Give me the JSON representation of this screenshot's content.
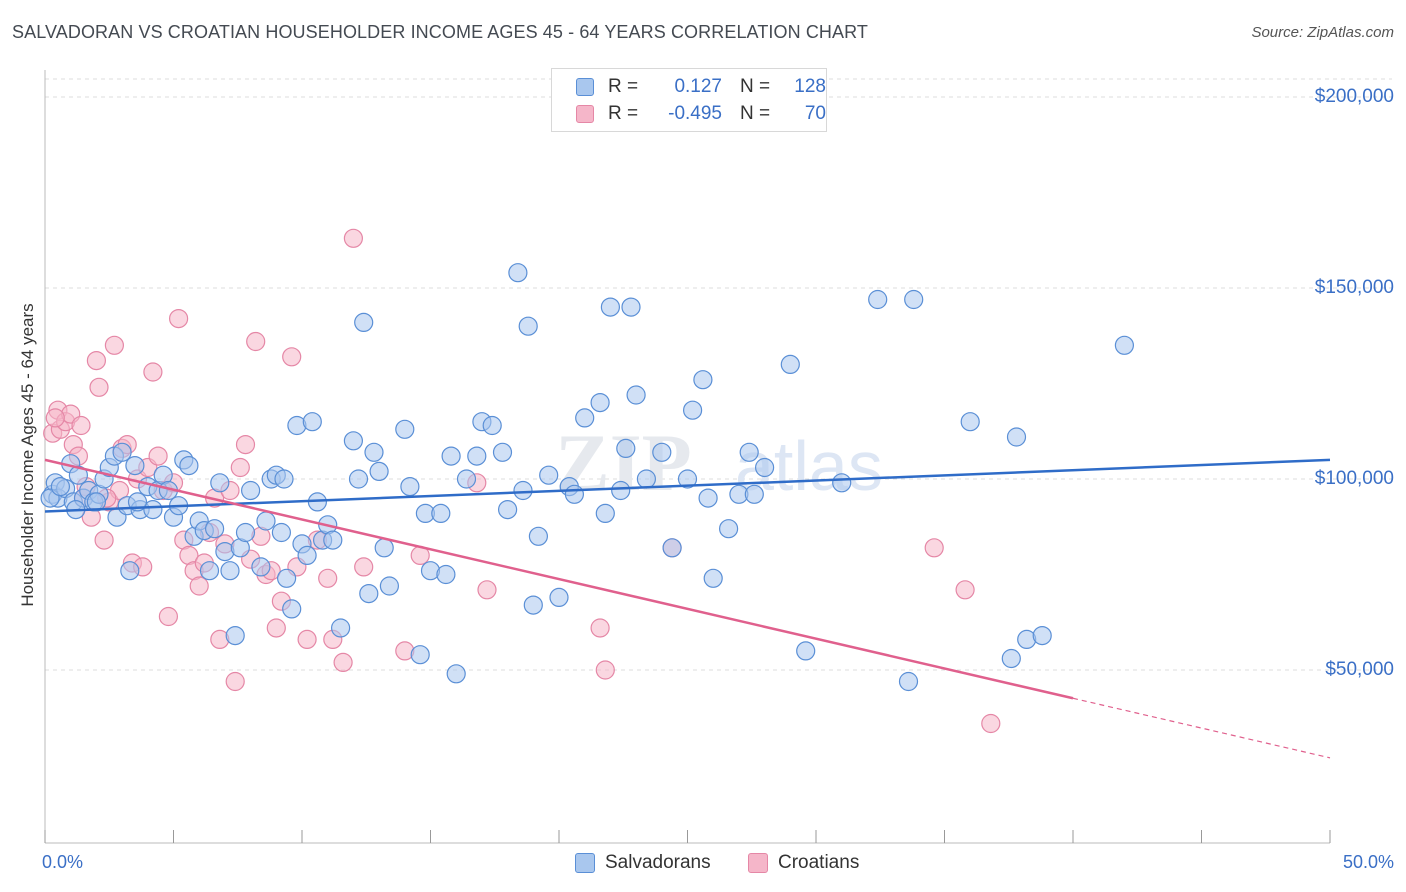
{
  "header": {
    "title": "SALVADORAN VS CROATIAN HOUSEHOLDER INCOME AGES 45 - 64 YEARS CORRELATION CHART",
    "source": "Source: ZipAtlas.com"
  },
  "legend": {
    "series1": {
      "r_label": "R =",
      "r_value": "0.127",
      "n_label": "N =",
      "n_value": "128"
    },
    "series2": {
      "r_label": "R =",
      "r_value": "-0.495",
      "n_label": "N =",
      "n_value": "70"
    }
  },
  "bottom_legend": {
    "series1": "Salvadorans",
    "series2": "Croatians"
  },
  "colors": {
    "blue_fill": "#a9c7ee",
    "blue_stroke": "#5a8fd6",
    "blue_line": "#2f6cc8",
    "pink_fill": "#f5b6c9",
    "pink_stroke": "#e587a6",
    "pink_line": "#e0608d",
    "tick_text": "#3a6fc6"
  },
  "chart_data": {
    "type": "scatter",
    "title": "SALVADORAN VS CROATIAN HOUSEHOLDER INCOME AGES 45 - 64 YEARS CORRELATION CHART",
    "xlabel": "",
    "ylabel": "Householder Income Ages 45 - 64 years",
    "xlim": [
      0,
      50
    ],
    "ylim": [
      0,
      210000
    ],
    "x_tick_labels": [
      "0.0%",
      "50.0%"
    ],
    "y_ticks": [
      50000,
      100000,
      150000,
      200000
    ],
    "y_tick_labels": [
      "$50,000",
      "$100,000",
      "$150,000",
      "$200,000"
    ],
    "grid": true,
    "watermark": "ZIPatlas",
    "series": [
      {
        "name": "Salvadorans",
        "r": 0.127,
        "n": 128,
        "trend": {
          "x": [
            0,
            50
          ],
          "y": [
            91500,
            105000
          ],
          "dashed_from": null
        },
        "points": [
          [
            0.3,
            96000
          ],
          [
            0.4,
            99000
          ],
          [
            0.5,
            95000
          ],
          [
            0.8,
            97500
          ],
          [
            1.0,
            104000
          ],
          [
            1.1,
            94000
          ],
          [
            1.3,
            101000
          ],
          [
            1.5,
            95000
          ],
          [
            1.7,
            97000
          ],
          [
            1.9,
            94000
          ],
          [
            2.1,
            96000
          ],
          [
            2.3,
            100000
          ],
          [
            2.5,
            103000
          ],
          [
            2.7,
            106000
          ],
          [
            2.8,
            90000
          ],
          [
            3.0,
            107000
          ],
          [
            3.2,
            93000
          ],
          [
            3.3,
            76000
          ],
          [
            3.5,
            103500
          ],
          [
            3.7,
            92000
          ],
          [
            4.0,
            98000
          ],
          [
            4.2,
            92000
          ],
          [
            4.4,
            97000
          ],
          [
            4.6,
            101000
          ],
          [
            4.8,
            97000
          ],
          [
            5.0,
            90000
          ],
          [
            5.2,
            93000
          ],
          [
            5.4,
            105000
          ],
          [
            5.6,
            103500
          ],
          [
            5.8,
            85000
          ],
          [
            6.0,
            89000
          ],
          [
            6.2,
            86500
          ],
          [
            6.4,
            76000
          ],
          [
            6.6,
            87000
          ],
          [
            6.8,
            99000
          ],
          [
            7.0,
            81000
          ],
          [
            7.2,
            76000
          ],
          [
            7.4,
            59000
          ],
          [
            7.6,
            82000
          ],
          [
            7.8,
            86000
          ],
          [
            8.0,
            97000
          ],
          [
            8.4,
            77000
          ],
          [
            8.6,
            89000
          ],
          [
            8.8,
            100000
          ],
          [
            9.0,
            101000
          ],
          [
            9.2,
            86000
          ],
          [
            9.4,
            74000
          ],
          [
            9.6,
            66000
          ],
          [
            9.8,
            114000
          ],
          [
            10.0,
            83000
          ],
          [
            10.2,
            80000
          ],
          [
            10.4,
            115000
          ],
          [
            10.6,
            94000
          ],
          [
            10.8,
            84000
          ],
          [
            11.0,
            88000
          ],
          [
            11.2,
            84000
          ],
          [
            11.5,
            61000
          ],
          [
            12.0,
            110000
          ],
          [
            12.2,
            100000
          ],
          [
            12.4,
            141000
          ],
          [
            12.6,
            70000
          ],
          [
            12.8,
            107000
          ],
          [
            13.0,
            102000
          ],
          [
            13.2,
            82000
          ],
          [
            13.4,
            72000
          ],
          [
            14.0,
            113000
          ],
          [
            14.2,
            98000
          ],
          [
            14.6,
            54000
          ],
          [
            14.8,
            91000
          ],
          [
            15.0,
            76000
          ],
          [
            15.4,
            91000
          ],
          [
            15.6,
            75000
          ],
          [
            15.8,
            106000
          ],
          [
            16.0,
            49000
          ],
          [
            16.4,
            100000
          ],
          [
            16.8,
            106000
          ],
          [
            17.0,
            115000
          ],
          [
            17.4,
            114000
          ],
          [
            17.8,
            107000
          ],
          [
            18.0,
            92000
          ],
          [
            18.4,
            154000
          ],
          [
            18.6,
            97000
          ],
          [
            18.8,
            140000
          ],
          [
            19.0,
            67000
          ],
          [
            19.2,
            85000
          ],
          [
            19.6,
            101000
          ],
          [
            20.0,
            69000
          ],
          [
            20.4,
            98000
          ],
          [
            20.6,
            96000
          ],
          [
            21.0,
            116000
          ],
          [
            21.6,
            120000
          ],
          [
            21.8,
            91000
          ],
          [
            22.0,
            145000
          ],
          [
            22.4,
            97000
          ],
          [
            22.6,
            108000
          ],
          [
            22.8,
            145000
          ],
          [
            23.0,
            122000
          ],
          [
            23.4,
            100000
          ],
          [
            24.0,
            107000
          ],
          [
            24.4,
            82000
          ],
          [
            25.0,
            100000
          ],
          [
            25.2,
            118000
          ],
          [
            25.6,
            126000
          ],
          [
            25.8,
            95000
          ],
          [
            26.0,
            74000
          ],
          [
            26.6,
            87000
          ],
          [
            27.0,
            96000
          ],
          [
            27.4,
            107000
          ],
          [
            27.6,
            96000
          ],
          [
            28.0,
            103000
          ],
          [
            29.0,
            130000
          ],
          [
            29.6,
            55000
          ],
          [
            31.0,
            99000
          ],
          [
            32.4,
            147000
          ],
          [
            33.6,
            47000
          ],
          [
            33.8,
            147000
          ],
          [
            36.0,
            115000
          ],
          [
            37.6,
            53000
          ],
          [
            37.8,
            111000
          ],
          [
            38.2,
            58000
          ],
          [
            38.8,
            59000
          ],
          [
            42.0,
            135000
          ],
          [
            0.2,
            95000
          ],
          [
            0.6,
            98000
          ],
          [
            1.2,
            92000
          ],
          [
            2.0,
            94000
          ],
          [
            3.6,
            94000
          ],
          [
            9.3,
            100000
          ]
        ]
      },
      {
        "name": "Croatians",
        "r": -0.495,
        "n": 70,
        "trend": {
          "x": [
            0,
            50
          ],
          "y": [
            105000,
            27000
          ],
          "dashed_from": 40
        },
        "points": [
          [
            0.3,
            112000
          ],
          [
            0.5,
            118000
          ],
          [
            0.6,
            113000
          ],
          [
            0.8,
            115000
          ],
          [
            1.0,
            117000
          ],
          [
            1.1,
            109000
          ],
          [
            1.3,
            106000
          ],
          [
            1.4,
            114000
          ],
          [
            1.6,
            98000
          ],
          [
            1.8,
            90000
          ],
          [
            2.0,
            131000
          ],
          [
            2.1,
            124000
          ],
          [
            2.3,
            84000
          ],
          [
            2.5,
            94000
          ],
          [
            2.7,
            135000
          ],
          [
            2.9,
            97000
          ],
          [
            3.0,
            108000
          ],
          [
            3.2,
            109000
          ],
          [
            3.4,
            78000
          ],
          [
            3.6,
            100000
          ],
          [
            3.8,
            77000
          ],
          [
            4.0,
            103000
          ],
          [
            4.2,
            128000
          ],
          [
            4.4,
            106000
          ],
          [
            4.6,
            97000
          ],
          [
            4.8,
            64000
          ],
          [
            5.0,
            99000
          ],
          [
            5.2,
            142000
          ],
          [
            5.4,
            84000
          ],
          [
            5.6,
            80000
          ],
          [
            5.8,
            76000
          ],
          [
            6.0,
            72000
          ],
          [
            6.2,
            78000
          ],
          [
            6.4,
            86000
          ],
          [
            6.6,
            95000
          ],
          [
            6.8,
            58000
          ],
          [
            7.0,
            83000
          ],
          [
            7.2,
            97000
          ],
          [
            7.4,
            47000
          ],
          [
            7.6,
            103000
          ],
          [
            7.8,
            109000
          ],
          [
            8.0,
            79000
          ],
          [
            8.2,
            136000
          ],
          [
            8.4,
            85000
          ],
          [
            8.6,
            75000
          ],
          [
            8.8,
            76000
          ],
          [
            9.0,
            61000
          ],
          [
            9.2,
            68000
          ],
          [
            9.6,
            132000
          ],
          [
            9.8,
            77000
          ],
          [
            10.2,
            58000
          ],
          [
            10.6,
            84000
          ],
          [
            11.0,
            74000
          ],
          [
            11.2,
            58000
          ],
          [
            11.6,
            52000
          ],
          [
            12.0,
            163000
          ],
          [
            12.4,
            77000
          ],
          [
            14.0,
            55000
          ],
          [
            14.6,
            80000
          ],
          [
            16.8,
            99000
          ],
          [
            17.2,
            71000
          ],
          [
            21.6,
            61000
          ],
          [
            21.8,
            50000
          ],
          [
            24.4,
            82000
          ],
          [
            34.6,
            82000
          ],
          [
            35.8,
            71000
          ],
          [
            36.8,
            36000
          ],
          [
            0.4,
            116000
          ],
          [
            1.5,
            95000
          ],
          [
            2.4,
            95000
          ]
        ]
      }
    ]
  }
}
